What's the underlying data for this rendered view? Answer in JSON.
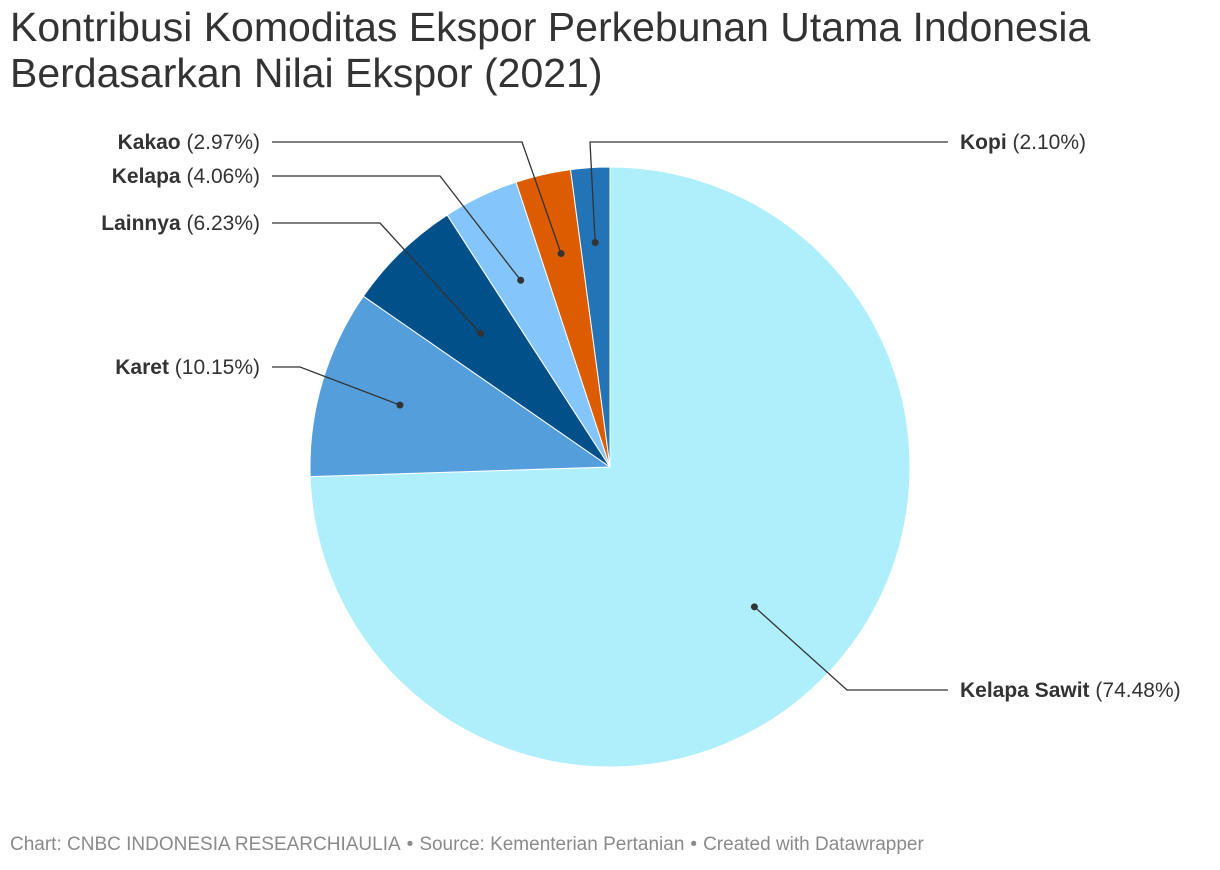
{
  "chart_data": {
    "type": "pie",
    "title": "Kontribusi Komoditas Ekspor Perkebunan Utama Indonesia Berdasarkan Nilai Ekspor (2021)",
    "unit": "%",
    "start_position": "top",
    "direction": "clockwise",
    "slices": [
      {
        "name": "Kelapa Sawit",
        "value": 74.48,
        "label": "(74.48%)",
        "color": "#aeeffb"
      },
      {
        "name": "Karet",
        "value": 10.15,
        "label": "(10.15%)",
        "color": "#559edc"
      },
      {
        "name": "Lainnya",
        "value": 6.23,
        "label": "(6.23%)",
        "color": "#02508a"
      },
      {
        "name": "Kelapa",
        "value": 4.06,
        "label": "(4.06%)",
        "color": "#84c6fb"
      },
      {
        "name": "Kakao",
        "value": 2.97,
        "label": "(2.97%)",
        "color": "#dd5c00"
      },
      {
        "name": "Kopi",
        "value": 2.1,
        "label": "(2.10%)",
        "color": "#2274b7"
      }
    ]
  },
  "footer": {
    "chart_credit": "Chart: CNBC INDONESIA RESEARCHIAULIA",
    "source": "Source: Kementerian Pertanian",
    "created_with": "Created with Datawrapper",
    "separator": "•"
  },
  "colors": {
    "text": "#333333",
    "footer_text": "#8a8a8a",
    "leader_line": "#333333"
  }
}
